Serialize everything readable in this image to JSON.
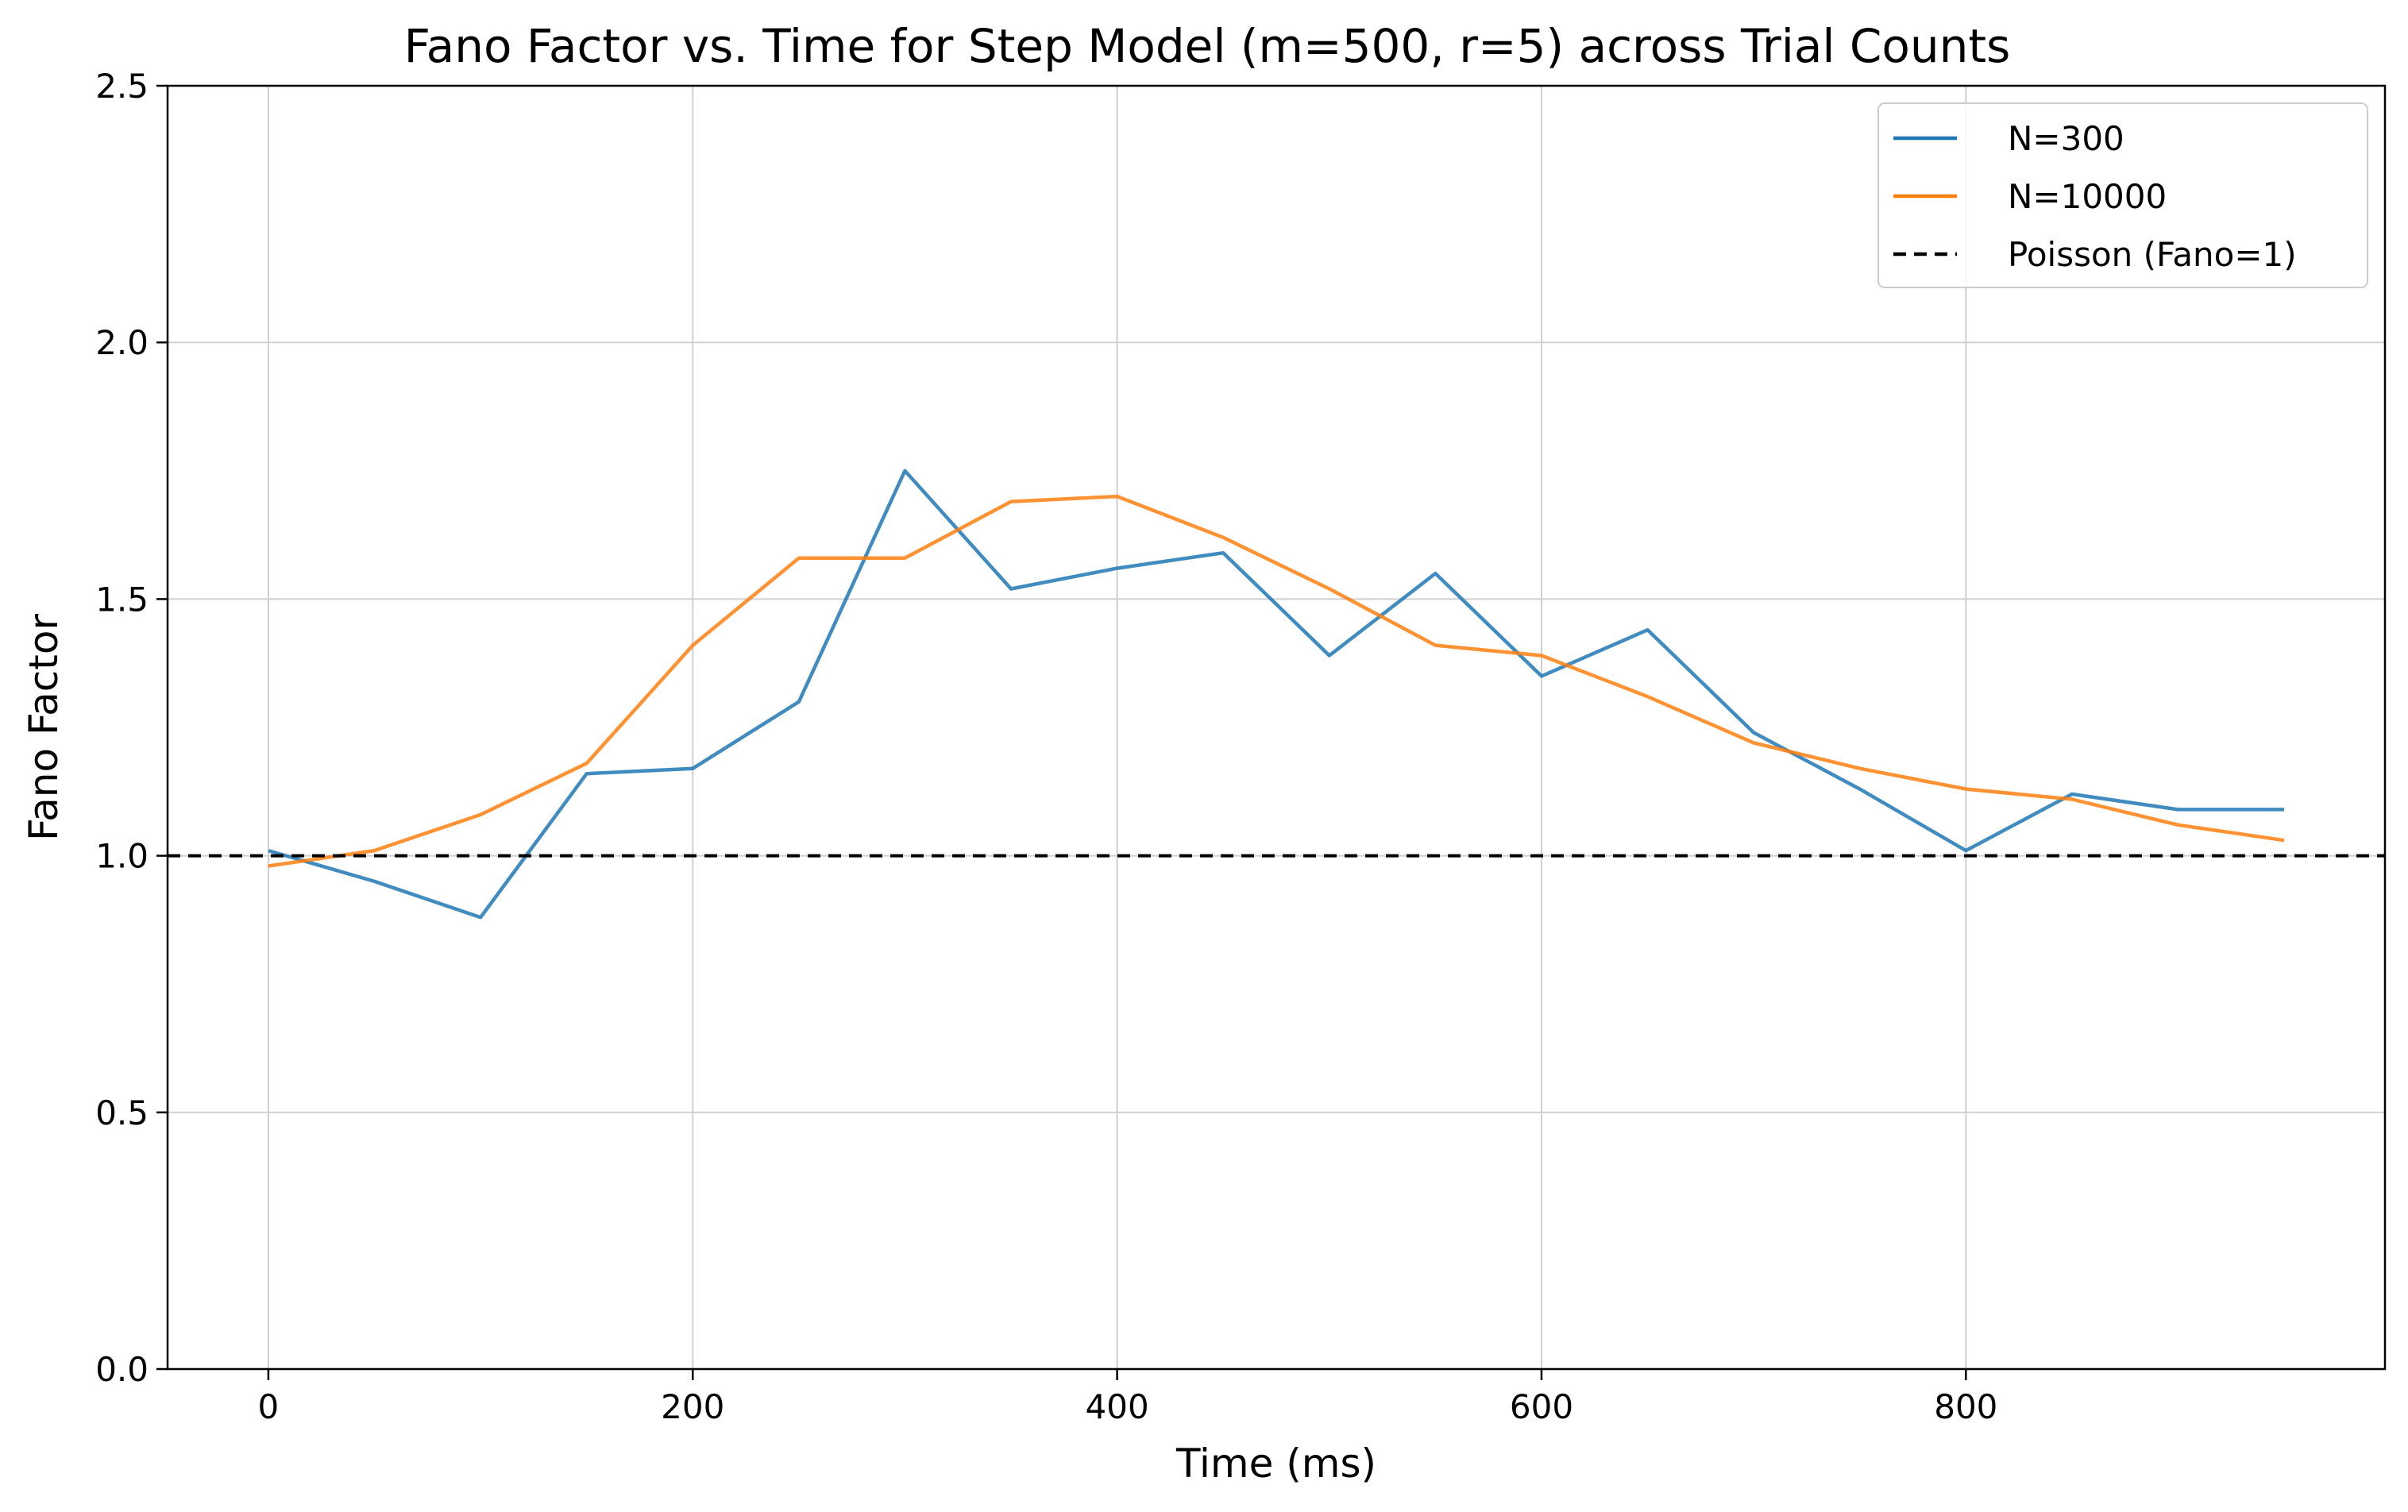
{
  "chart_data": {
    "type": "line",
    "title": "Fano Factor vs. Time for Step Model (m=500, r=5) across Trial Counts",
    "xlabel": "Time (ms)",
    "ylabel": "Fano Factor",
    "xlim": [
      -47.5,
      997.5
    ],
    "ylim": [
      0.0,
      2.5
    ],
    "xticks": [
      0,
      200,
      400,
      600,
      800
    ],
    "xtick_labels": [
      "0",
      "200",
      "400",
      "600",
      "800"
    ],
    "yticks": [
      0.0,
      0.5,
      1.0,
      1.5,
      2.0,
      2.5
    ],
    "ytick_labels": [
      "0.0",
      "0.5",
      "1.0",
      "1.5",
      "2.0",
      "2.5"
    ],
    "grid": true,
    "legend_position": "top-right",
    "x": [
      0,
      50,
      100,
      150,
      200,
      250,
      300,
      350,
      400,
      450,
      500,
      550,
      600,
      650,
      700,
      750,
      800,
      850,
      900,
      950
    ],
    "series": [
      {
        "name": "N=300",
        "color": "#1f77b4",
        "style": "solid",
        "values": [
          1.01,
          0.95,
          0.88,
          1.16,
          1.17,
          1.3,
          1.75,
          1.52,
          1.56,
          1.59,
          1.39,
          1.55,
          1.35,
          1.44,
          1.24,
          1.13,
          1.01,
          1.12,
          1.09,
          1.09
        ]
      },
      {
        "name": "N=10000",
        "color": "#ff7f0e",
        "style": "solid",
        "values": [
          0.98,
          1.01,
          1.08,
          1.18,
          1.41,
          1.58,
          1.58,
          1.69,
          1.7,
          1.62,
          1.52,
          1.41,
          1.39,
          1.31,
          1.22,
          1.17,
          1.13,
          1.11,
          1.06,
          1.03
        ]
      },
      {
        "name": "Poisson (Fano=1)",
        "color": "#000000",
        "style": "dashed",
        "hline": 1.0
      }
    ]
  }
}
